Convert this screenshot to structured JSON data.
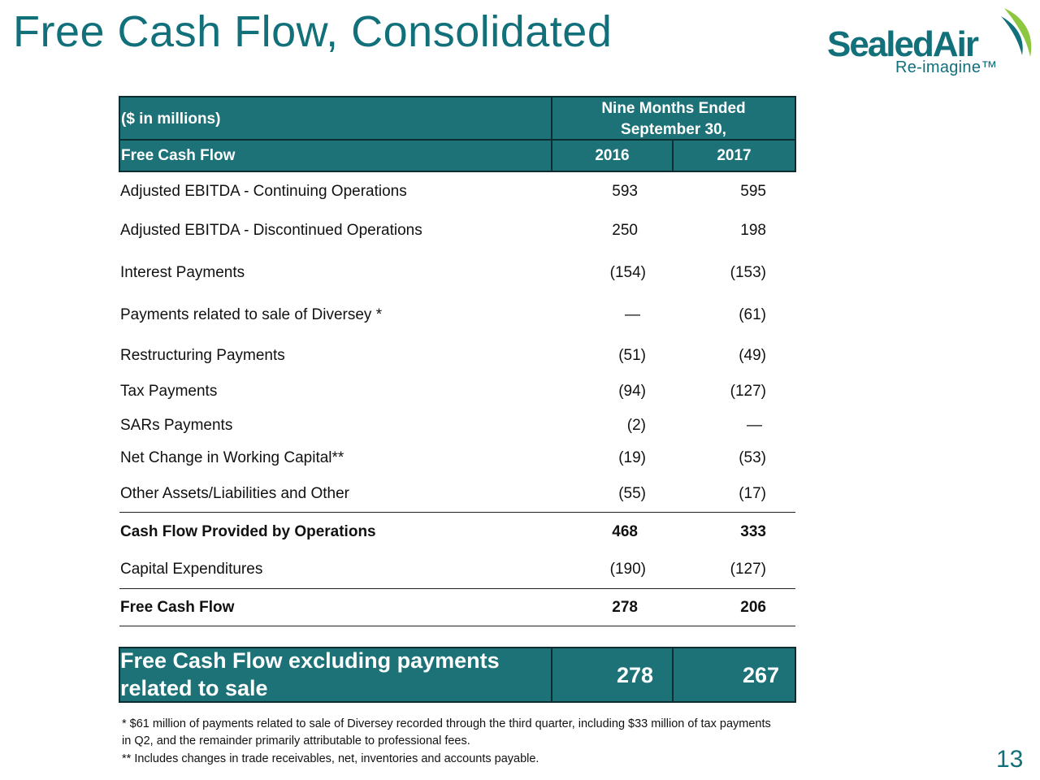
{
  "slide": {
    "title": "Free Cash Flow, Consolidated",
    "page_number": "13"
  },
  "logo": {
    "name": "SealedAir",
    "tagline": "Re-imagine™"
  },
  "table": {
    "unit_label": "($ in millions)",
    "period_header_line1": "Nine Months Ended",
    "period_header_line2": "September 30,",
    "section_label": "Free Cash Flow",
    "year1": "2016",
    "year2": "2017",
    "rows": [
      {
        "label": "Adjusted EBITDA - Continuing Operations",
        "v2016": "593",
        "v2017": "595",
        "bold": false
      },
      {
        "label": "Adjusted EBITDA - Discontinued Operations",
        "v2016": "250",
        "v2017": "198",
        "bold": false
      },
      {
        "label": "Interest Payments",
        "v2016": "(154)",
        "v2017": "(153)",
        "bold": false
      },
      {
        "label": "Payments related to sale of Diversey *",
        "v2016": "—",
        "v2017": "(61)",
        "bold": false
      },
      {
        "label": "Restructuring Payments",
        "v2016": "(51)",
        "v2017": "(49)",
        "bold": false
      },
      {
        "label": "Tax Payments",
        "v2016": "(94)",
        "v2017": "(127)",
        "bold": false
      },
      {
        "label": "SARs Payments",
        "v2016": "(2)",
        "v2017": "—",
        "bold": false
      },
      {
        "label": "Net Change in Working Capital**",
        "v2016": "(19)",
        "v2017": "(53)",
        "bold": false
      },
      {
        "label": "Other Assets/Liabilities and Other",
        "v2016": "(55)",
        "v2017": "(17)",
        "bold": false
      },
      {
        "label": "Cash Flow Provided by Operations",
        "v2016": "468",
        "v2017": "333",
        "bold": true
      },
      {
        "label": "Capital Expenditures",
        "v2016": "(190)",
        "v2017": "(127)",
        "bold": false
      },
      {
        "label": "Free Cash Flow",
        "v2016": "278",
        "v2017": "206",
        "bold": true
      }
    ],
    "summary": {
      "label_line1": "Free Cash Flow excluding payments",
      "label_line2": "related to sale",
      "v2016": "278",
      "v2017": "267"
    }
  },
  "footnotes": {
    "note1": "* $61 million of payments related to sale of Diversey recorded through the third quarter, including $33 million of tax payments in Q2, and the remainder primarily attributable to professional fees.",
    "note2": "** Includes changes in trade receivables, net, inventories and accounts payable."
  },
  "colors": {
    "teal_title": "#11707a",
    "header_fill": "#1d7278",
    "logo_green": "#8dc63f"
  }
}
